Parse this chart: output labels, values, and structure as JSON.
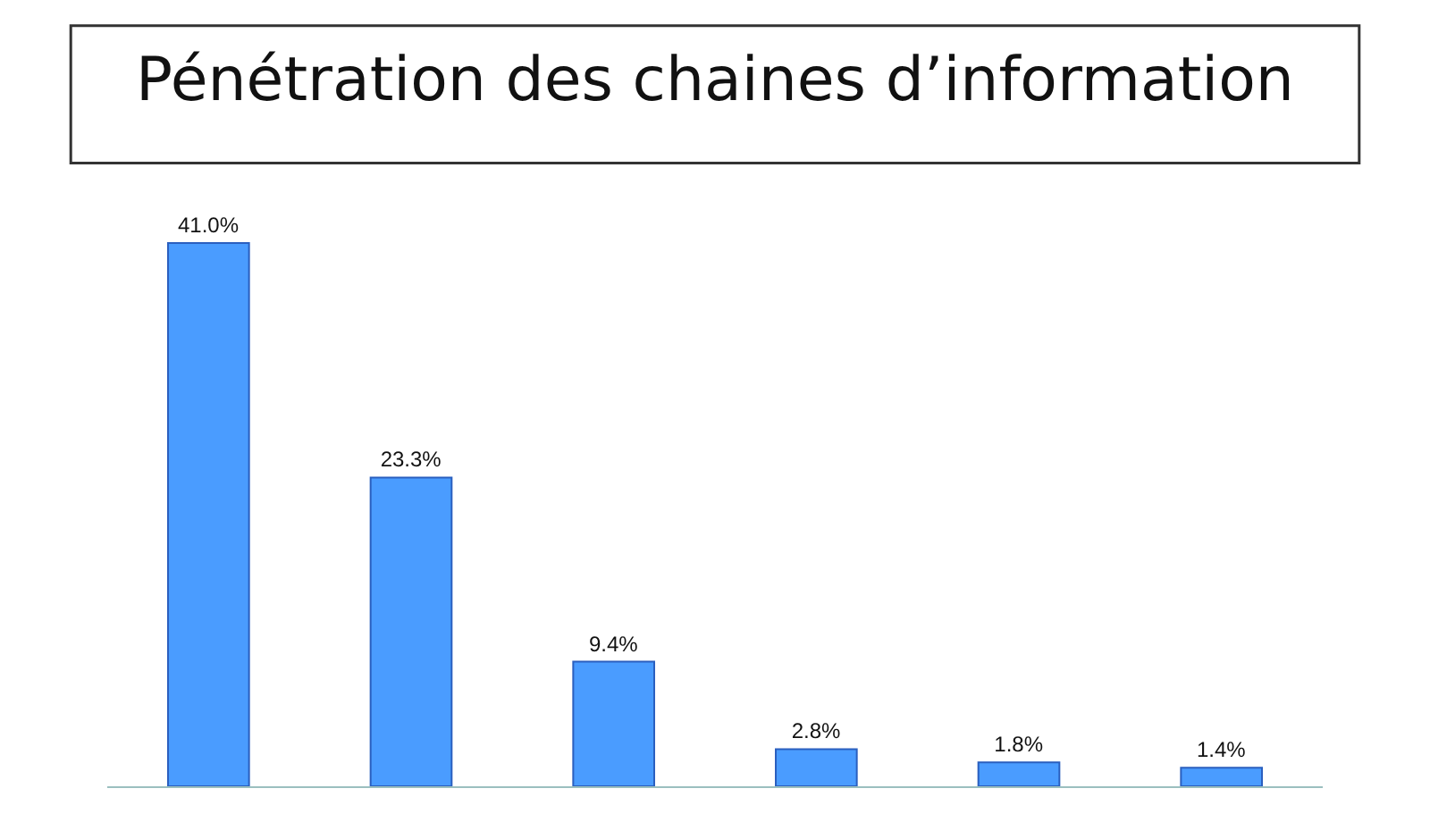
{
  "chart_data": {
    "type": "bar",
    "title": "Pénétration des chaines d’information",
    "categories": [
      null,
      null,
      null,
      null,
      null,
      null
    ],
    "values": [
      41.0,
      23.3,
      9.4,
      2.8,
      1.8,
      1.4
    ],
    "value_labels": [
      "41.0%",
      "23.3%",
      "9.4%",
      "2.8%",
      "1.8%",
      "1.4%"
    ],
    "color": "#4a9cff"
  }
}
